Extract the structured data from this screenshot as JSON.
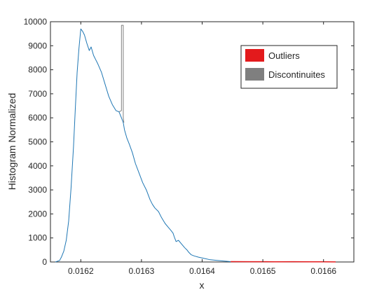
{
  "chart_data": {
    "type": "line",
    "title": "",
    "xlabel": "x",
    "ylabel": "Histogram Normalized",
    "xlim": [
      0.01615,
      0.01665
    ],
    "ylim": [
      0,
      10000
    ],
    "grid": false,
    "legend_placement": "top-right",
    "x_ticks": [
      "0.0162",
      "0.0163",
      "0.0164",
      "0.0165",
      "0.0166"
    ],
    "x_tick_values": [
      0.0162,
      0.0163,
      0.0164,
      0.0165,
      0.0166
    ],
    "y_ticks": [
      "0",
      "1000",
      "2000",
      "3000",
      "4000",
      "5000",
      "6000",
      "7000",
      "8000",
      "9000",
      "10000"
    ],
    "y_tick_values": [
      0,
      1000,
      2000,
      3000,
      4000,
      5000,
      6000,
      7000,
      8000,
      9000,
      10000
    ],
    "legend": [
      {
        "label": "Outliers",
        "color": "#e31a1c"
      },
      {
        "label": "Discontinuites",
        "color": "#7f7f7f"
      }
    ],
    "series": [
      {
        "color": "#1f77b4",
        "x": [
          0.016158,
          0.016165,
          0.016168,
          0.016172,
          0.016176,
          0.01618,
          0.016184,
          0.016188,
          0.016191,
          0.016194,
          0.016197,
          0.0162,
          0.016203,
          0.016206,
          0.01621,
          0.016214,
          0.016217,
          0.016221,
          0.016224,
          0.016228,
          0.016234,
          0.01624,
          0.016246,
          0.016252,
          0.016258,
          0.016263,
          0.016267,
          0.01627,
          0.016272,
          0.016276,
          0.01628,
          0.016285,
          0.01629,
          0.016296,
          0.016302,
          0.016308,
          0.016314,
          0.016318,
          0.016322,
          0.016328,
          0.016333,
          0.016339,
          0.016344,
          0.016349,
          0.016352,
          0.016354,
          0.016357,
          0.016361,
          0.016366,
          0.016371,
          0.016375,
          0.016378,
          0.016382,
          0.016387,
          0.016394,
          0.016403,
          0.016412,
          0.016423,
          0.016435,
          0.016447
        ],
        "y": [
          0,
          60,
          200,
          450,
          900,
          1700,
          3100,
          4800,
          6400,
          7900,
          8900,
          9700,
          9600,
          9450,
          9100,
          8800,
          8950,
          8600,
          8450,
          8250,
          7900,
          7400,
          6900,
          6550,
          6300,
          6250,
          6000,
          5800,
          5500,
          5150,
          4900,
          4550,
          4100,
          3700,
          3300,
          3000,
          2600,
          2400,
          2250,
          2100,
          1850,
          1600,
          1450,
          1300,
          1200,
          1050,
          850,
          900,
          750,
          600,
          500,
          400,
          300,
          250,
          200,
          150,
          100,
          70,
          40,
          15
        ]
      },
      {
        "color": "#e31a1c",
        "x": [
          0.016447,
          0.01648,
          0.0165,
          0.01652,
          0.01655,
          0.01658,
          0.0166,
          0.01662
        ],
        "y": [
          15,
          10,
          12,
          8,
          10,
          6,
          8,
          5
        ]
      },
      {
        "color": "#7f7f7f",
        "x": [
          0.016263,
          0.016267,
          0.016267,
          0.01627,
          0.01627,
          0.016271
        ],
        "y": [
          6250,
          6300,
          9850,
          9850,
          6000,
          5800
        ]
      }
    ]
  }
}
